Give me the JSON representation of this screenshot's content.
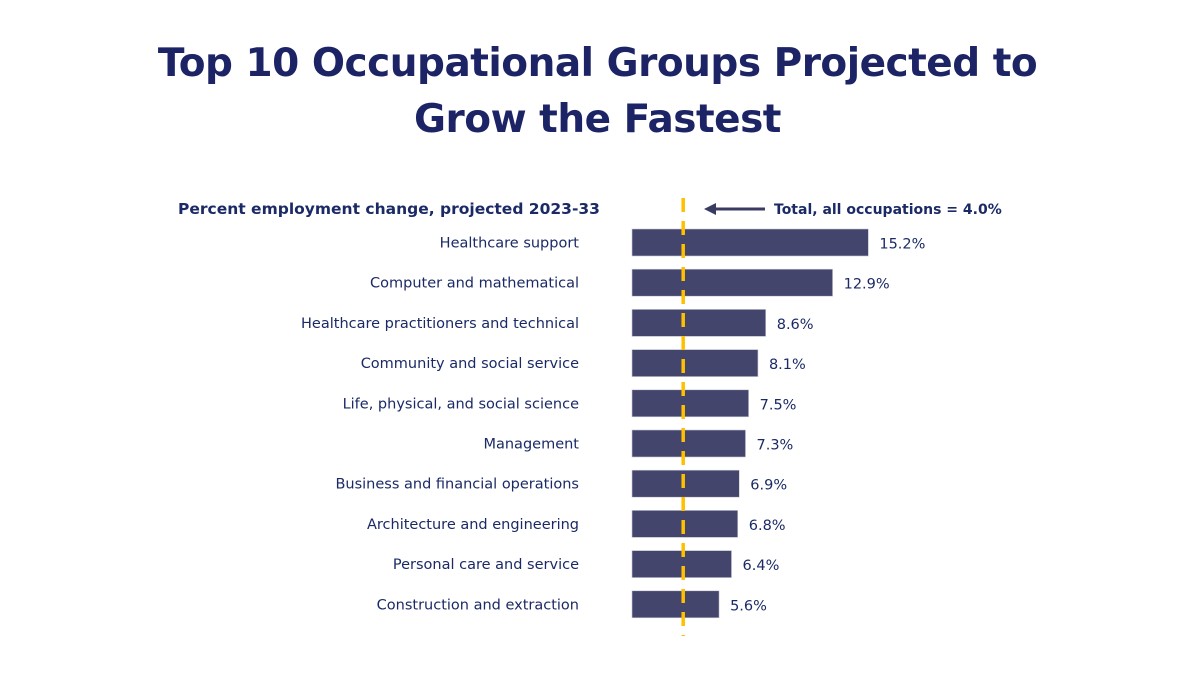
{
  "title_line1": "Top 10 Occupational Groups Projected to",
  "title_line2": "Grow the Fastest",
  "chart_data": {
    "type": "bar",
    "orientation": "horizontal",
    "subtitle": "Percent employment change, projected 2023-33",
    "categories": [
      "Healthcare support",
      "Computer and mathematical",
      "Healthcare practitioners and technical",
      "Community and social service",
      "Life, physical, and social science",
      "Management",
      "Business and financial operations",
      "Architecture and engineering",
      "Personal care and service",
      "Construction and extraction"
    ],
    "values": [
      15.2,
      12.9,
      8.6,
      8.1,
      7.5,
      7.3,
      6.9,
      6.8,
      6.4,
      5.6
    ],
    "value_labels": [
      "15.2%",
      "12.9%",
      "8.6%",
      "8.1%",
      "7.5%",
      "7.3%",
      "6.9%",
      "6.8%",
      "6.4%",
      "5.6%"
    ],
    "reference_line": {
      "value": 4.0,
      "label": "Total, all occupations = 4.0%",
      "style": "dashed",
      "color": "#FFC000"
    },
    "bar_color": "#44456C",
    "text_color": "#1B2A66",
    "grid": false,
    "legend": "none"
  }
}
